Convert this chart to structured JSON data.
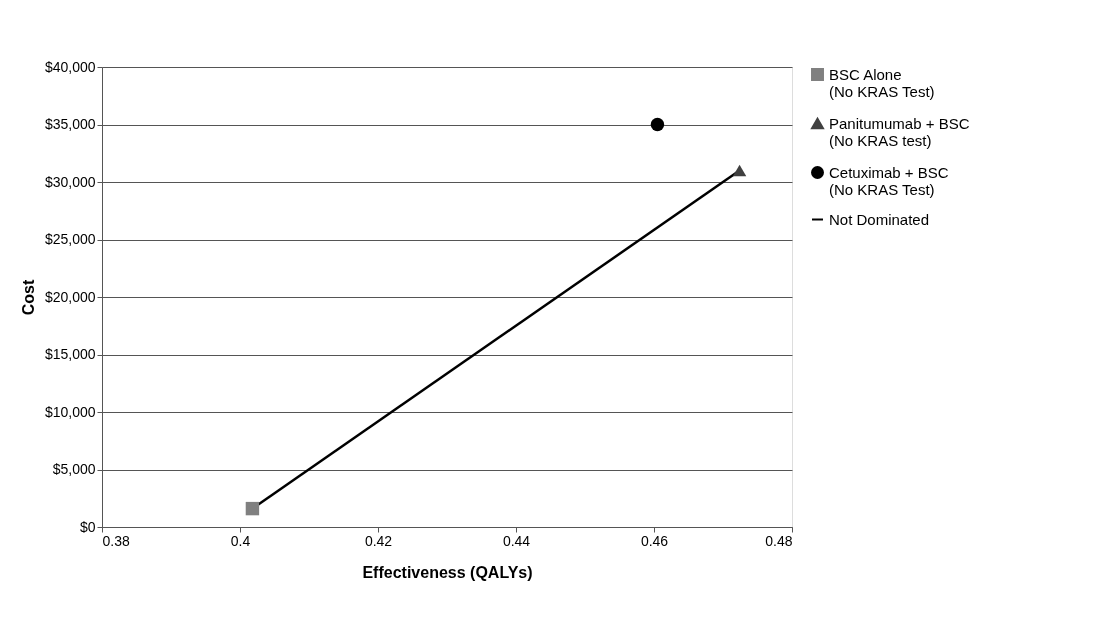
{
  "chart_data": {
    "type": "scatter",
    "xlabel": "Effectiveness (QALYs)",
    "ylabel": "Cost",
    "xlim": [
      0.38,
      0.48
    ],
    "xticks": [
      0.38,
      0.4,
      0.42,
      0.44,
      0.46,
      0.48
    ],
    "ylim": [
      0,
      40000
    ],
    "yticks": [
      {
        "value": 0,
        "label": "$0"
      },
      {
        "value": 5000,
        "label": "$5,000"
      },
      {
        "value": 10000,
        "label": "$10,000"
      },
      {
        "value": 15000,
        "label": "$15,000"
      },
      {
        "value": 20000,
        "label": "$20,000"
      },
      {
        "value": 25000,
        "label": "$25,000"
      },
      {
        "value": 30000,
        "label": "$30,000"
      },
      {
        "value": 35000,
        "label": "$35,000"
      },
      {
        "value": 40000,
        "label": "$40,000"
      }
    ],
    "grid": "y",
    "legend": "right",
    "series": [
      {
        "name": "BSC Alone (No KRAS Test)",
        "color": "#808080",
        "marker": "square",
        "x": [
          0.4018
        ],
        "values": [
          1600
        ]
      },
      {
        "name": "Panitumumab + BSC (No KRAS test)",
        "color": "#404040",
        "marker": "triangle",
        "x": [
          0.4724
        ],
        "values": [
          31000
        ]
      },
      {
        "name": "Cetuximab + BSC (No KRAS Test)",
        "color": "#000000",
        "marker": "circle",
        "x": [
          0.4605
        ],
        "values": [
          35000
        ]
      },
      {
        "name": "Not Dominated",
        "type": "line",
        "color": "#000000",
        "line_style": "solid",
        "x": [
          0.4018,
          0.4724
        ],
        "values": [
          1600,
          31000
        ]
      }
    ]
  }
}
